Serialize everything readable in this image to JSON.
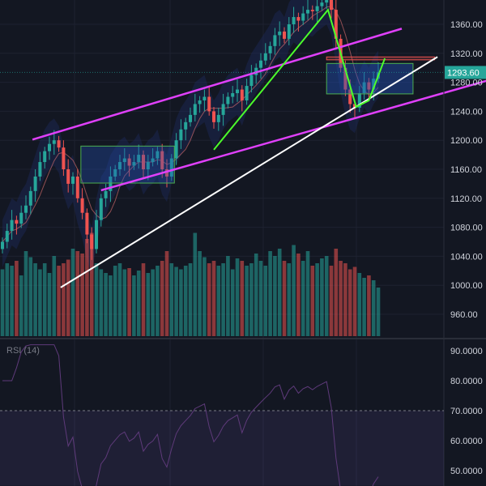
{
  "chart_data": {
    "type": "candlestick",
    "price_axis": {
      "ticks": [
        1360,
        1320,
        1280,
        1240,
        1200,
        1160,
        1120,
        1080,
        1040,
        1000,
        960
      ],
      "range": [
        925,
        1400
      ],
      "labels": [
        "1360.00",
        "1320.00",
        "1280.00",
        "1240.00",
        "1200.00",
        "1160.00",
        "1120.00",
        "1080.00",
        "1040.00",
        "1000.00",
        "960.00"
      ]
    },
    "last_price": "1293.60",
    "closes": [
      1060,
      1075,
      1090,
      1085,
      1100,
      1110,
      1130,
      1150,
      1170,
      1185,
      1195,
      1200,
      1190,
      1160,
      1140,
      1150,
      1120,
      1100,
      1070,
      1050,
      1090,
      1120,
      1130,
      1150,
      1160,
      1170,
      1175,
      1165,
      1170,
      1180,
      1160,
      1170,
      1175,
      1185,
      1160,
      1150,
      1175,
      1200,
      1215,
      1225,
      1235,
      1250,
      1255,
      1260,
      1240,
      1225,
      1235,
      1250,
      1260,
      1265,
      1270,
      1255,
      1275,
      1290,
      1300,
      1310,
      1320,
      1330,
      1345,
      1350,
      1340,
      1360,
      1370,
      1365,
      1375,
      1380,
      1378,
      1385,
      1390,
      1395,
      1380,
      1340,
      1300,
      1270,
      1250,
      1245,
      1265,
      1280,
      1270,
      1285,
      1293.6
    ],
    "volumes": [
      55,
      60,
      58,
      62,
      50,
      70,
      65,
      60,
      55,
      60,
      52,
      66,
      58,
      60,
      63,
      72,
      70,
      68,
      80,
      85,
      60,
      55,
      52,
      50,
      58,
      60,
      55,
      56,
      50,
      54,
      60,
      52,
      55,
      58,
      62,
      70,
      60,
      57,
      55,
      58,
      60,
      85,
      70,
      65,
      60,
      62,
      58,
      60,
      66,
      55,
      64,
      62,
      58,
      60,
      68,
      62,
      58,
      70,
      66,
      72,
      62,
      60,
      75,
      68,
      62,
      70,
      58,
      60,
      64,
      66,
      58,
      72,
      62,
      60,
      55,
      57,
      52,
      48,
      50,
      46,
      40
    ],
    "rsi": {
      "label": "RSI (14)",
      "ticks": [
        "90.0000",
        "80.0000",
        "70.0000",
        "60.0000",
        "50.0000"
      ],
      "range": [
        45,
        92
      ],
      "overbought": 70
    },
    "drawings": {
      "upper_channel": [
        [
          6.4,
          1201
        ],
        [
          85,
          1354
        ]
      ],
      "lower_channel": [
        [
          21,
          1131
        ],
        [
          103,
          1282
        ]
      ],
      "trendline": [
        [
          12.4,
          997
        ],
        [
          92.6,
          1315
        ]
      ],
      "zigzag": [
        [
          45,
          1187
        ],
        [
          69.3,
          1380
        ],
        [
          75.3,
          1246
        ],
        [
          78,
          1255
        ],
        [
          81.4,
          1313
        ]
      ],
      "box1": [
        [
          16.7,
          1192
        ],
        [
          36.6,
          1141
        ]
      ],
      "box2": [
        [
          69,
          1306
        ],
        [
          87.4,
          1264
        ]
      ],
      "resistance": [
        [
          69,
          1315
        ],
        [
          92,
          1311
        ]
      ]
    },
    "colors": {
      "up": "#26a69a",
      "down": "#ef5350",
      "channel": "#e040fb",
      "trend": "#ffffff",
      "zigzag": "#4cff2b",
      "box": "#4caf50",
      "bg": "#131722"
    }
  }
}
